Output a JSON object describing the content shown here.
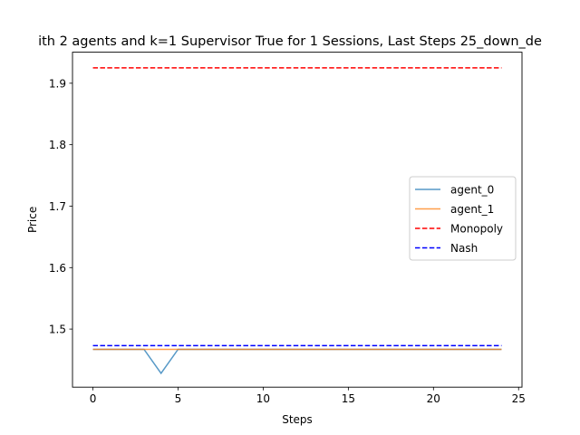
{
  "chart_data": {
    "type": "line",
    "title": "ith 2 agents and k=1 Supervisor True for 1 Sessions, Last Steps 25_down_de",
    "xlabel": "Steps",
    "ylabel": "Price",
    "xlim": [
      -1.2,
      25.2
    ],
    "ylim": [
      1.4055,
      1.9505
    ],
    "xticks": [
      "0",
      "5",
      "10",
      "15",
      "20",
      "25"
    ],
    "yticks": [
      "1.5",
      "1.6",
      "1.7",
      "1.8",
      "1.9"
    ],
    "grid": false,
    "legend_position": "center-right",
    "series": [
      {
        "name": "agent_0",
        "color": "#1f77b4",
        "style": "solid",
        "x": [
          0,
          1,
          2,
          3,
          4,
          5,
          6,
          7,
          8,
          9,
          10,
          11,
          12,
          13,
          14,
          15,
          16,
          17,
          18,
          19,
          20,
          21,
          22,
          23,
          24
        ],
        "values": [
          1.467,
          1.467,
          1.467,
          1.467,
          1.428,
          1.467,
          1.467,
          1.467,
          1.467,
          1.467,
          1.467,
          1.467,
          1.467,
          1.467,
          1.467,
          1.467,
          1.467,
          1.467,
          1.467,
          1.467,
          1.467,
          1.467,
          1.467,
          1.467,
          1.467
        ]
      },
      {
        "name": "agent_1",
        "color": "#ff7f0e",
        "style": "solid",
        "x": [
          0,
          1,
          2,
          3,
          4,
          5,
          6,
          7,
          8,
          9,
          10,
          11,
          12,
          13,
          14,
          15,
          16,
          17,
          18,
          19,
          20,
          21,
          22,
          23,
          24
        ],
        "values": [
          1.467,
          1.467,
          1.467,
          1.467,
          1.467,
          1.467,
          1.467,
          1.467,
          1.467,
          1.467,
          1.467,
          1.467,
          1.467,
          1.467,
          1.467,
          1.467,
          1.467,
          1.467,
          1.467,
          1.467,
          1.467,
          1.467,
          1.467,
          1.467,
          1.467
        ]
      },
      {
        "name": "Monopoly",
        "color": "#ff0000",
        "style": "dashed",
        "x": [
          0,
          24
        ],
        "values": [
          1.925,
          1.925
        ]
      },
      {
        "name": "Nash",
        "color": "#0000ff",
        "style": "dashed",
        "x": [
          0,
          24
        ],
        "values": [
          1.473,
          1.473
        ]
      }
    ]
  }
}
